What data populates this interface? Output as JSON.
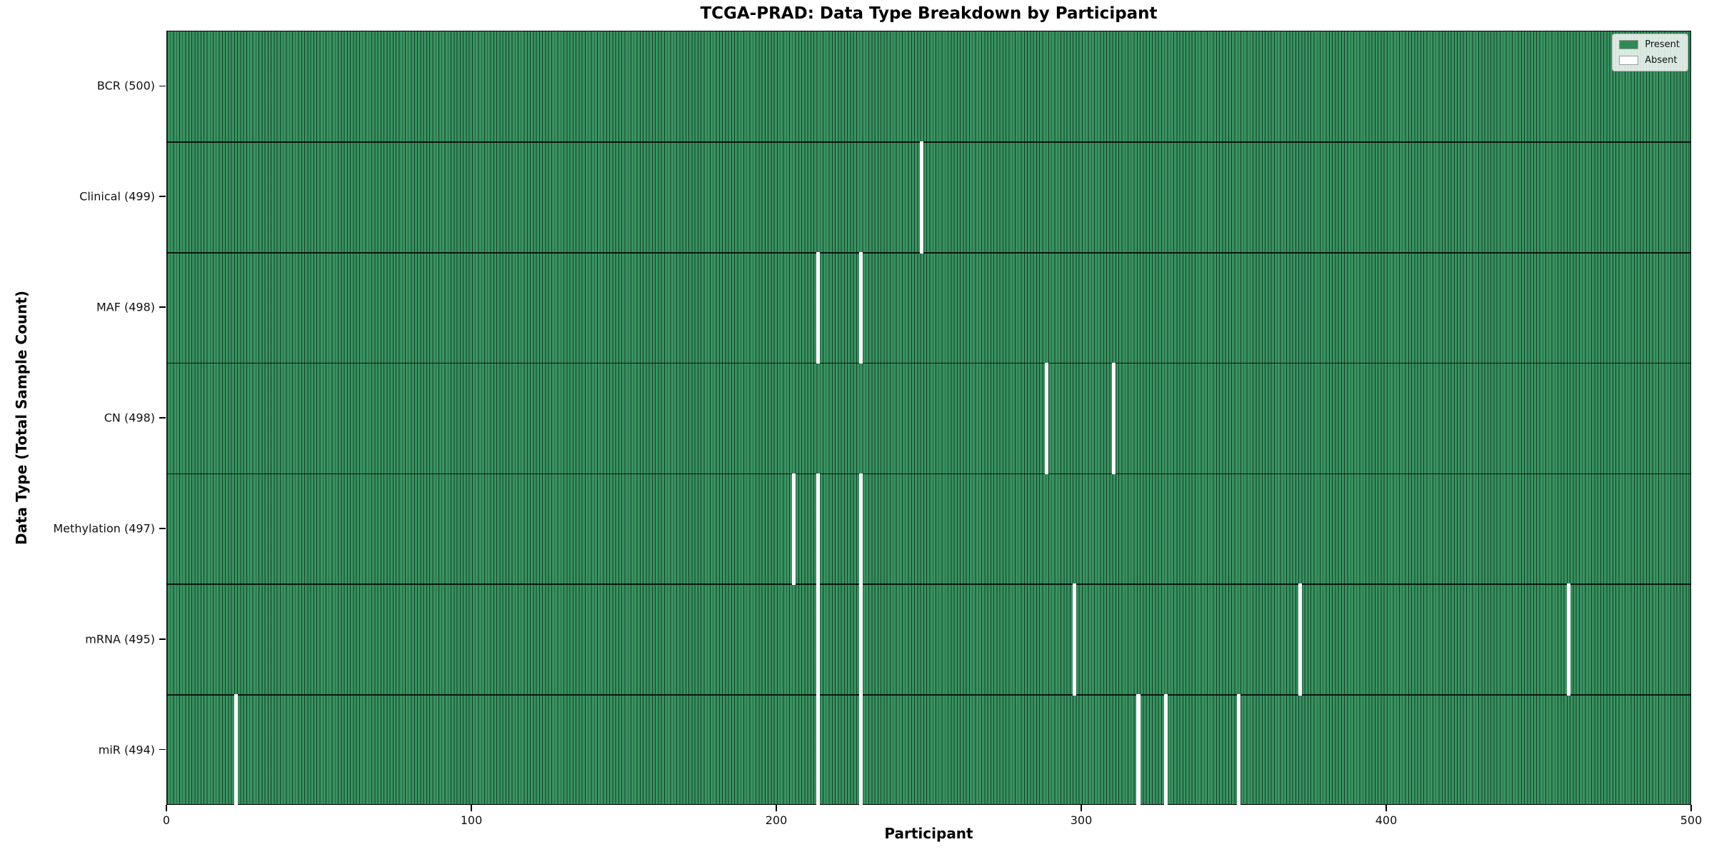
{
  "chart_data": {
    "type": "heatmap",
    "title": "TCGA-PRAD: Data Type Breakdown by Participant",
    "xlabel": "Participant",
    "ylabel": "Data Type (Total Sample Count)",
    "x_ticks": [
      0,
      100,
      200,
      300,
      400,
      500
    ],
    "xlim": [
      0,
      500
    ],
    "n_participants": 500,
    "rows": [
      {
        "label": "BCR (500)",
        "total": 500,
        "absent_participants": []
      },
      {
        "label": "Clinical (499)",
        "total": 499,
        "absent_participants": [
          247
        ]
      },
      {
        "label": "MAF (498)",
        "total": 498,
        "absent_participants": [
          213,
          227
        ]
      },
      {
        "label": "CN (498)",
        "total": 498,
        "absent_participants": [
          288,
          310
        ]
      },
      {
        "label": "Methylation (497)",
        "total": 497,
        "absent_participants": [
          205,
          213,
          227
        ]
      },
      {
        "label": "mRNA (495)",
        "total": 495,
        "absent_participants": [
          213,
          227,
          297,
          371,
          459
        ]
      },
      {
        "label": "miR (494)",
        "total": 494,
        "absent_participants": [
          22,
          213,
          227,
          318,
          327,
          351
        ]
      }
    ],
    "legend": [
      {
        "label": "Present",
        "color": "#2e8b57"
      },
      {
        "label": "Absent",
        "color": "#ffffff"
      }
    ],
    "colors": {
      "present": "#2e8b57",
      "absent": "#ffffff",
      "bar_edge": "#000000"
    },
    "legend_position": "upper right",
    "grid": false
  }
}
